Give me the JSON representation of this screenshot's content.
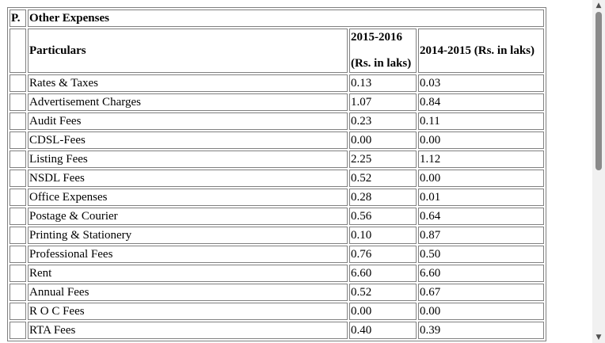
{
  "table": {
    "section_label": "P.",
    "section_title": "Other Expenses",
    "header": {
      "particulars": "Particulars",
      "year_current": "2015-2016",
      "year_current_unit": "(Rs. in laks)",
      "year_previous": "2014-2015 (Rs. in laks)"
    },
    "rows": [
      {
        "particular": "Rates & Taxes",
        "current": "0.13",
        "previous": "0.03"
      },
      {
        "particular": "Advertisement Charges",
        "current": "1.07",
        "previous": "0.84"
      },
      {
        "particular": "Audit Fees",
        "current": "0.23",
        "previous": "0.11"
      },
      {
        "particular": "CDSL-Fees",
        "current": "0.00",
        "previous": "0.00"
      },
      {
        "particular": "Listing Fees",
        "current": "2.25",
        "previous": "1.12"
      },
      {
        "particular": "NSDL Fees",
        "current": "0.52",
        "previous": "0.00"
      },
      {
        "particular": "Office Expenses",
        "current": "0.28",
        "previous": "0.01"
      },
      {
        "particular": "Postage & Courier",
        "current": "0.56",
        "previous": "0.64"
      },
      {
        "particular": "Printing & Stationery",
        "current": "0.10",
        "previous": "0.87"
      },
      {
        "particular": "Professional Fees",
        "current": "0.76",
        "previous": "0.50"
      },
      {
        "particular": "Rent",
        "current": "6.60",
        "previous": "6.60"
      },
      {
        "particular": "Annual Fees",
        "current": "0.52",
        "previous": "0.67"
      },
      {
        "particular": "R O C Fees",
        "current": "0.00",
        "previous": "0.00"
      },
      {
        "particular": "RTA Fees",
        "current": "0.40",
        "previous": "0.39"
      }
    ]
  },
  "scrollbar": {
    "up_icon": "▲",
    "down_icon": "▼"
  }
}
